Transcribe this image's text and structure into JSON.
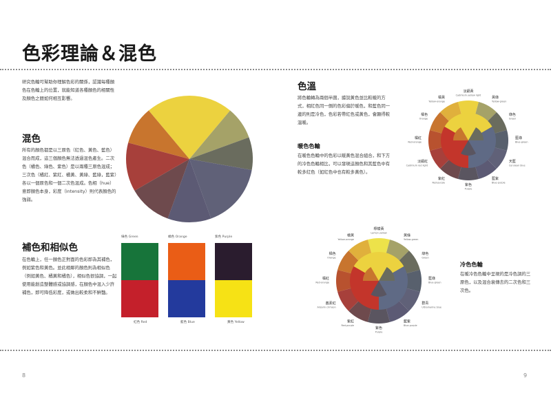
{
  "page": {
    "title": "色彩理論＆混色",
    "page_left": "8",
    "page_right": "9"
  },
  "intro": {
    "text": "研究色輪可幫助你理解色彩的關係，認識每種顏色在色輪上的位置，就能知道各種顏色的相關性及顏色之間如何相互影響。"
  },
  "mixing": {
    "heading": "混色",
    "text": "所有的顏色都是以三原色（紅色、黃色、藍色）混合而成，這三個顏色無法透過混色產生。二次色（橘色、綠色、紫色）是以兩種三原色混成；三次色（橘紅、紫紅、橘黃、黃綠、藍綠，藍紫）各以一個原色和一個二次色混成。色相（hue）意即顏色本身，彩度（intensity）則代表顏色的強弱。"
  },
  "complementary": {
    "heading": "補色和相似色",
    "text": "在色輪上，任一顏色正對面的色彩即為其補色，例如紫色和黃色。並此相鄰的顏色則為相似色（例如黃色、橘黃和橘色），相似色很協調，一起使用能創造整體感或協調感，在顏色中混入少許補色，即可降低彩度，或做出較柔和不鮮豔。",
    "swatches": [
      {
        "top": "綠色 Green",
        "bottom": "紅色 Red",
        "top_color": "#17743a",
        "bottom_color": "#c4202b"
      },
      {
        "top": "橘色 Orange",
        "bottom": "藍色 Blue",
        "top_color": "#ea5d16",
        "bottom_color": "#233a9d"
      },
      {
        "top": "紫色 Purple",
        "bottom": "黃色 Yellow",
        "top_color": "#2a1c2e",
        "bottom_color": "#f6e215"
      }
    ]
  },
  "temperature": {
    "heading": "色溫",
    "text": "將色輪轉為兩個半圓，據說黃色並比較暖的方式，相紅色同一側的色彩偏於暖色，和藍色同一邊的則是冷色，色彩若帶紅色或黃色，會顯得較溫暖。"
  },
  "warm": {
    "heading": "暖色色輪",
    "text": "在暖色色輪中的色彩以暖黃色混合組合，和下方的冷色色輪相比，可以發現這顏色和其藍色中有較多紅色（如紅色中也有較多黃色）。"
  },
  "cool": {
    "heading": "冷色色輪",
    "text": "在暖冷色色輪中呈現的是冷色調的三原色，以及混合衰傳去的二次色和三次色。"
  },
  "wheel_warm_labels": [
    {
      "zh": "淡鎘黃",
      "en": "Cadmium yellow light"
    },
    {
      "zh": "黃綠",
      "en": "Yellow-green"
    },
    {
      "zh": "綠色",
      "en": "Green"
    },
    {
      "zh": "藍綠",
      "en": "Blue-green"
    },
    {
      "zh": "天藍",
      "en": "Cerulean blue"
    },
    {
      "zh": "藍紫",
      "en": "Blue-purple"
    },
    {
      "zh": "紫色",
      "en": "Purple"
    },
    {
      "zh": "紫紅",
      "en": "Red-purple"
    },
    {
      "zh": "淡鎘紅",
      "en": "Cadmium red light"
    },
    {
      "zh": "橘紅",
      "en": "Red-orange"
    },
    {
      "zh": "橘色",
      "en": "Orange"
    },
    {
      "zh": "橘黃",
      "en": "Yellow-orange"
    }
  ],
  "wheel_cool_labels": [
    {
      "zh": "檸檬黃",
      "en": "Lemon yellow"
    },
    {
      "zh": "黃綠",
      "en": "Yellow-green"
    },
    {
      "zh": "綠色",
      "en": "Green"
    },
    {
      "zh": "藍綠",
      "en": "Blue-green"
    },
    {
      "zh": "群青",
      "en": "Ultramarine blue"
    },
    {
      "zh": "藍紫",
      "en": "Blue-purple"
    },
    {
      "zh": "紫色",
      "en": "Purple"
    },
    {
      "zh": "紫紅",
      "en": "Red-purple"
    },
    {
      "zh": "茜素紅",
      "en": "Alizarin crimson"
    },
    {
      "zh": "橘紅",
      "en": "Red-orange"
    },
    {
      "zh": "橘色",
      "en": "Orange"
    },
    {
      "zh": "橘黃",
      "en": "Yellow-orange"
    }
  ],
  "colors": {
    "yellow": "#ecd23f",
    "yellow_orange": "#e0b03c",
    "orange": "#c8752e",
    "red_orange": "#b8522f",
    "red": "#a7403b",
    "red_purple": "#6e4a4d",
    "purple": "#5a5560",
    "blue_purple": "#5c5a74",
    "blue": "#606178",
    "blue_green": "#58606d",
    "green": "#6a6c5e",
    "yellow_green": "#a5a268",
    "inner_red": "#c3352b",
    "inner_blue": "#5f6a85",
    "inner_yellow": "#ecd23f"
  }
}
